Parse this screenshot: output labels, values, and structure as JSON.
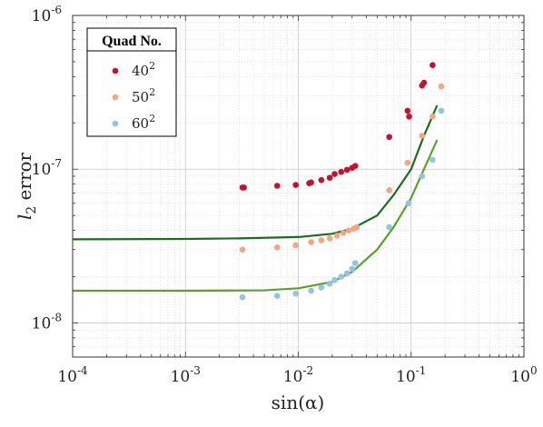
{
  "chart_data": {
    "type": "scatter",
    "title": "",
    "xlabel": "sin(α)",
    "ylabel": "l2 error",
    "xscale": "log",
    "yscale": "log",
    "xlim": [
      0.0001,
      1
    ],
    "ylim": [
      6e-09,
      1e-06
    ],
    "grid": true,
    "legend_placement": "top-left",
    "legend_title": "Quad No.",
    "x_ticks": [
      {
        "value": 0.0001,
        "base": "10",
        "exp": "-4"
      },
      {
        "value": 0.001,
        "base": "10",
        "exp": "-3"
      },
      {
        "value": 0.01,
        "base": "10",
        "exp": "-2"
      },
      {
        "value": 0.1,
        "base": "10",
        "exp": "-1"
      },
      {
        "value": 1,
        "base": "10",
        "exp": "0"
      }
    ],
    "y_ticks": [
      {
        "value": 1e-08,
        "base": "10",
        "exp": "-8"
      },
      {
        "value": 1e-07,
        "base": "10",
        "exp": "-7"
      },
      {
        "value": 1e-06,
        "base": "10",
        "exp": "-6"
      }
    ],
    "series": [
      {
        "name": "40",
        "name_exp": "2",
        "color": "#c8102e",
        "points": [
          [
            0.0032,
            7.6e-08
          ],
          [
            0.0033,
            7.6e-08
          ],
          [
            0.0065,
            7.8e-08
          ],
          [
            0.0095,
            7.9e-08
          ],
          [
            0.0125,
            8.1e-08
          ],
          [
            0.013,
            8.2e-08
          ],
          [
            0.016,
            8.5e-08
          ],
          [
            0.019,
            8.8e-08
          ],
          [
            0.021,
            9.3e-08
          ],
          [
            0.024,
            9.6e-08
          ],
          [
            0.027,
            9.9e-08
          ],
          [
            0.03,
            1.02e-07
          ],
          [
            0.032,
            1.05e-07
          ],
          [
            0.064,
            1.62e-07
          ],
          [
            0.093,
            2.4e-07
          ],
          [
            0.096,
            2.2e-07
          ],
          [
            0.125,
            3.5e-07
          ],
          [
            0.13,
            3.65e-07
          ],
          [
            0.155,
            4.75e-07
          ]
        ]
      },
      {
        "name": "50",
        "name_exp": "2",
        "color": "#f4a582",
        "points": [
          [
            0.0032,
            3e-08
          ],
          [
            0.0065,
            3.1e-08
          ],
          [
            0.0095,
            3.2e-08
          ],
          [
            0.013,
            3.35e-08
          ],
          [
            0.016,
            3.45e-08
          ],
          [
            0.019,
            3.55e-08
          ],
          [
            0.022,
            3.7e-08
          ],
          [
            0.025,
            3.85e-08
          ],
          [
            0.028,
            4e-08
          ],
          [
            0.031,
            4.1e-08
          ],
          [
            0.033,
            4.2e-08
          ],
          [
            0.064,
            7.3e-08
          ],
          [
            0.093,
            1.1e-07
          ],
          [
            0.125,
            1.65e-07
          ],
          [
            0.155,
            2.2e-07
          ],
          [
            0.185,
            3.45e-07
          ]
        ]
      },
      {
        "name": "60",
        "name_exp": "2",
        "color": "#92c5de",
        "points": [
          [
            0.0032,
            1.47e-08
          ],
          [
            0.0065,
            1.5e-08
          ],
          [
            0.0095,
            1.55e-08
          ],
          [
            0.013,
            1.62e-08
          ],
          [
            0.016,
            1.7e-08
          ],
          [
            0.019,
            1.8e-08
          ],
          [
            0.021,
            1.9e-08
          ],
          [
            0.024,
            2e-08
          ],
          [
            0.027,
            2.1e-08
          ],
          [
            0.03,
            2.25e-08
          ],
          [
            0.032,
            2.45e-08
          ],
          [
            0.064,
            4.2e-08
          ],
          [
            0.095,
            6e-08
          ],
          [
            0.125,
            9e-08
          ],
          [
            0.155,
            1.15e-07
          ],
          [
            0.185,
            2.4e-07
          ]
        ]
      }
    ],
    "fit_curves": [
      {
        "color": "#1e6b1e",
        "points": [
          [
            0.0001,
            3.5e-08
          ],
          [
            0.001,
            3.52e-08
          ],
          [
            0.003,
            3.55e-08
          ],
          [
            0.01,
            3.62e-08
          ],
          [
            0.02,
            3.8e-08
          ],
          [
            0.03,
            4.1e-08
          ],
          [
            0.05,
            5e-08
          ],
          [
            0.07,
            6.8e-08
          ],
          [
            0.1,
            1e-07
          ],
          [
            0.13,
            1.65e-07
          ],
          [
            0.17,
            2.6e-07
          ]
        ]
      },
      {
        "color": "#5aa02c",
        "points": [
          [
            0.0001,
            1.62e-08
          ],
          [
            0.001,
            1.62e-08
          ],
          [
            0.005,
            1.63e-08
          ],
          [
            0.01,
            1.68e-08
          ],
          [
            0.02,
            1.85e-08
          ],
          [
            0.03,
            2.15e-08
          ],
          [
            0.05,
            3e-08
          ],
          [
            0.07,
            4.2e-08
          ],
          [
            0.1,
            6.5e-08
          ],
          [
            0.13,
            1e-07
          ],
          [
            0.17,
            1.55e-07
          ]
        ]
      }
    ]
  }
}
